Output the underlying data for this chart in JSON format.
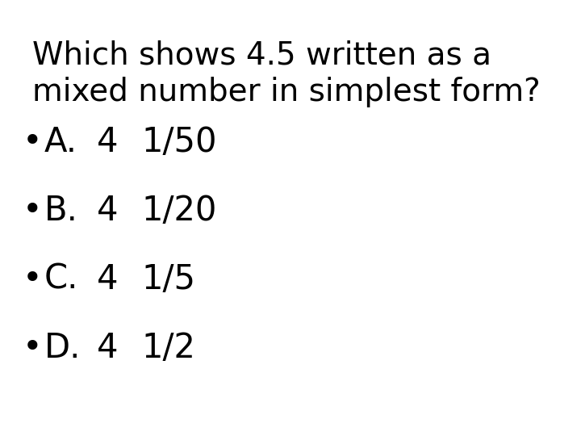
{
  "background_color": "#ffffff",
  "title_line1": "Which shows 4.5 written as a",
  "title_line2": "mixed number in simplest form?",
  "options": [
    {
      "label": "A.",
      "number": "4",
      "fraction": "1/50"
    },
    {
      "label": "B.",
      "number": "4",
      "fraction": "1/20"
    },
    {
      "label": "C.",
      "number": "4",
      "fraction": "1/5"
    },
    {
      "label": "D.",
      "number": "4",
      "fraction": "1/2"
    }
  ],
  "font_size_title": 28,
  "font_size_options": 30,
  "text_color": "#000000",
  "font_family": "DejaVu Sans",
  "bullet": "•",
  "figsize": [
    7.2,
    5.4
  ],
  "dpi": 100
}
